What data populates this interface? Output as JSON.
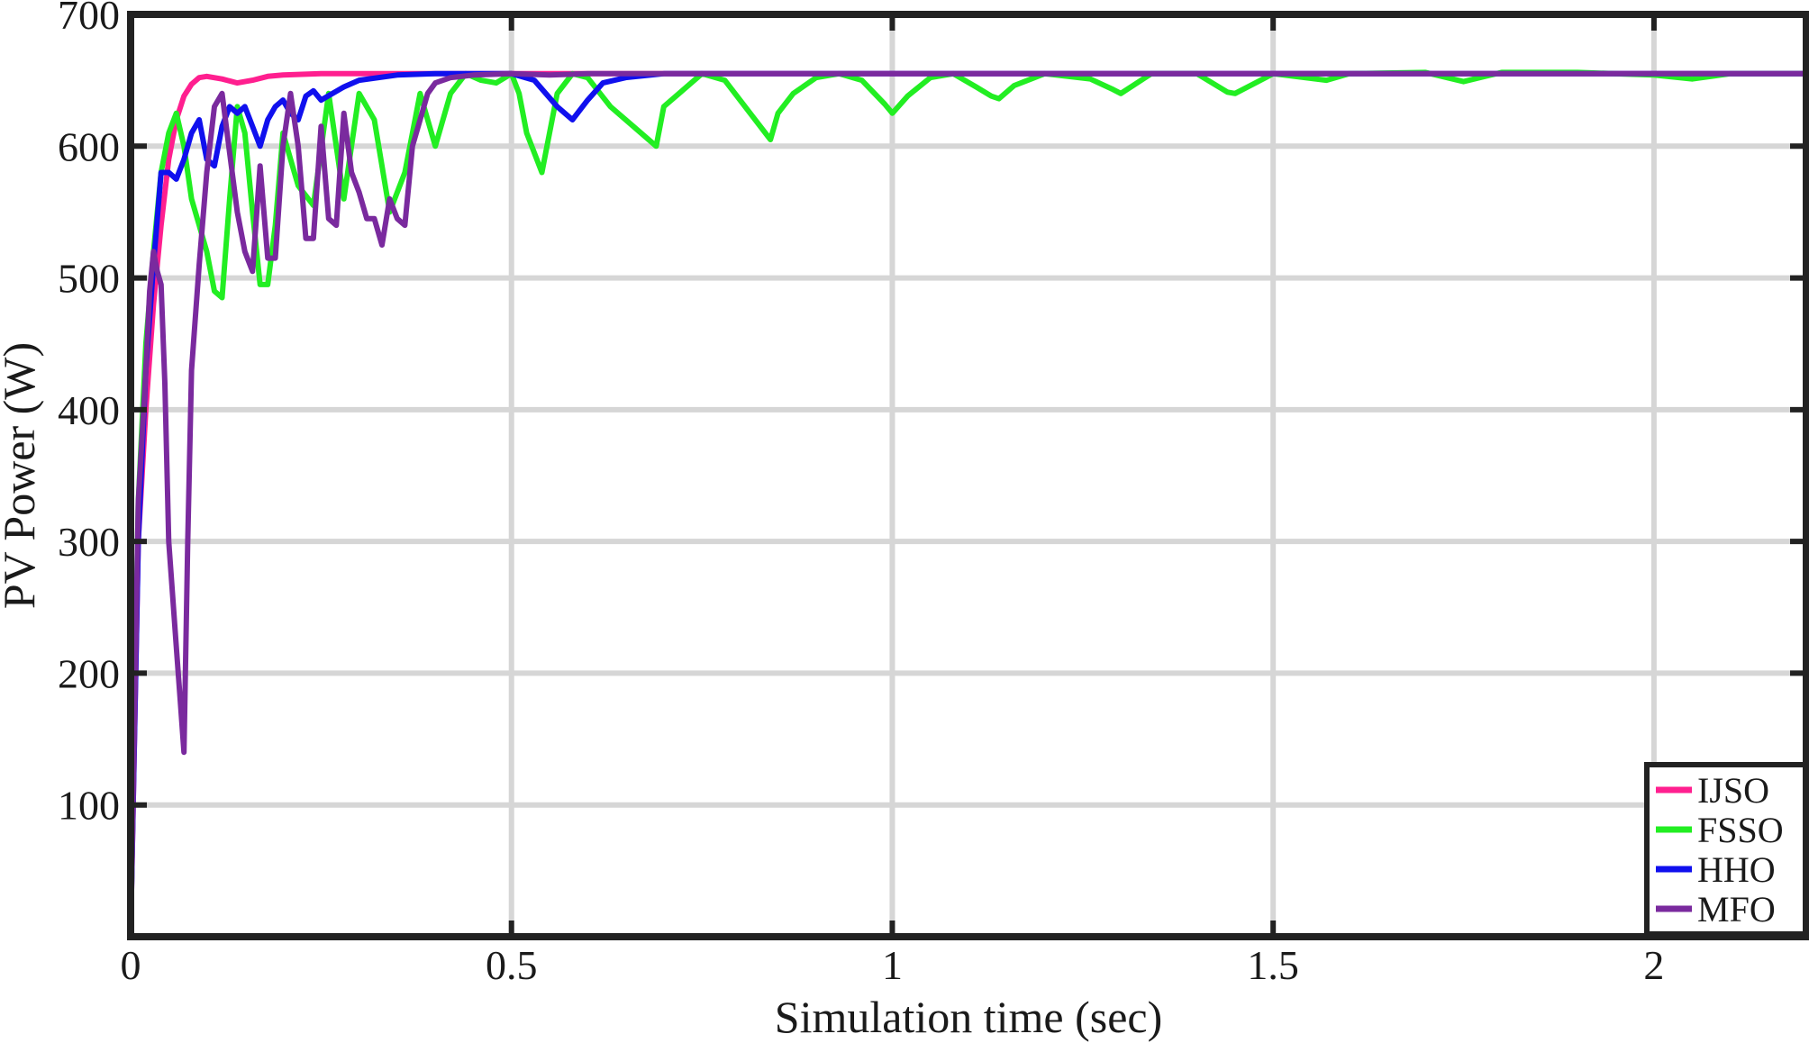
{
  "chart_data": {
    "type": "line",
    "title": "",
    "xlabel": "Simulation time (sec)",
    "ylabel": "PV Power (W)",
    "xlim": [
      0,
      2.2
    ],
    "ylim": [
      0,
      700
    ],
    "xticks": [
      0,
      0.5,
      1,
      1.5,
      2
    ],
    "xtick_labels": [
      "0",
      "0.5",
      "1",
      "1.5",
      "2"
    ],
    "yticks": [
      100,
      200,
      300,
      400,
      500,
      600,
      700
    ],
    "ytick_labels": [
      "100",
      "200",
      "300",
      "400",
      "500",
      "600",
      "700"
    ],
    "grid": true,
    "legend_position": "bottom-right",
    "series": [
      {
        "name": "IJSO",
        "color": "#ff1f8f",
        "x": [
          0,
          0.01,
          0.02,
          0.03,
          0.04,
          0.05,
          0.06,
          0.07,
          0.08,
          0.09,
          0.1,
          0.12,
          0.14,
          0.16,
          0.18,
          0.2,
          0.25,
          0.3,
          0.5,
          1,
          1.5,
          2,
          2.2
        ],
        "y": [
          0,
          300,
          400,
          480,
          540,
          590,
          620,
          638,
          647,
          652,
          653,
          651,
          648,
          650,
          653,
          654,
          655,
          655,
          655,
          655,
          655,
          655,
          655
        ]
      },
      {
        "name": "FSSO",
        "color": "#22ee22",
        "x": [
          0,
          0.01,
          0.02,
          0.03,
          0.04,
          0.05,
          0.06,
          0.07,
          0.08,
          0.09,
          0.1,
          0.11,
          0.12,
          0.13,
          0.14,
          0.15,
          0.16,
          0.17,
          0.18,
          0.19,
          0.2,
          0.22,
          0.24,
          0.26,
          0.28,
          0.3,
          0.32,
          0.34,
          0.36,
          0.38,
          0.4,
          0.42,
          0.44,
          0.46,
          0.48,
          0.5,
          0.51,
          0.52,
          0.54,
          0.56,
          0.58,
          0.6,
          0.63,
          0.66,
          0.69,
          0.7,
          0.72,
          0.75,
          0.78,
          0.84,
          0.85,
          0.87,
          0.9,
          0.93,
          0.96,
          0.99,
          1.0,
          1.02,
          1.05,
          1.08,
          1.11,
          1.13,
          1.14,
          1.16,
          1.2,
          1.26,
          1.29,
          1.3,
          1.34,
          1.4,
          1.44,
          1.45,
          1.5,
          1.57,
          1.6,
          1.7,
          1.75,
          1.8,
          1.9,
          2.0,
          2.05,
          2.1,
          2.2
        ],
        "y": [
          0,
          330,
          450,
          520,
          580,
          610,
          625,
          600,
          560,
          540,
          520,
          490,
          485,
          560,
          630,
          610,
          550,
          495,
          495,
          540,
          610,
          570,
          555,
          640,
          560,
          640,
          620,
          550,
          580,
          640,
          600,
          640,
          655,
          650,
          648,
          655,
          640,
          610,
          580,
          640,
          655,
          652,
          630,
          615,
          600,
          630,
          640,
          655,
          650,
          605,
          625,
          640,
          652,
          655,
          650,
          632,
          625,
          638,
          652,
          655,
          645,
          638,
          636,
          646,
          655,
          651,
          643,
          640,
          655,
          655,
          641,
          640,
          655,
          650,
          655,
          656,
          649,
          656,
          656,
          654,
          651,
          655,
          655
        ]
      },
      {
        "name": "HHO",
        "color": "#1010ee",
        "x": [
          0,
          0.01,
          0.02,
          0.03,
          0.04,
          0.05,
          0.06,
          0.07,
          0.08,
          0.09,
          0.1,
          0.11,
          0.12,
          0.13,
          0.14,
          0.15,
          0.16,
          0.17,
          0.18,
          0.19,
          0.2,
          0.21,
          0.22,
          0.23,
          0.24,
          0.25,
          0.28,
          0.3,
          0.35,
          0.4,
          0.45,
          0.5,
          0.53,
          0.56,
          0.58,
          0.6,
          0.62,
          0.65,
          0.7,
          0.8,
          1.0,
          1.5,
          2.0,
          2.2
        ],
        "y": [
          0,
          300,
          430,
          510,
          580,
          580,
          575,
          590,
          610,
          620,
          590,
          585,
          615,
          630,
          625,
          630,
          615,
          600,
          620,
          630,
          635,
          625,
          620,
          638,
          642,
          635,
          645,
          650,
          654,
          655,
          655,
          655,
          650,
          630,
          620,
          635,
          648,
          652,
          655,
          655,
          655,
          655,
          655,
          655
        ]
      },
      {
        "name": "MFO",
        "color": "#7a2a9e",
        "x": [
          0,
          0.01,
          0.02,
          0.025,
          0.03,
          0.035,
          0.04,
          0.045,
          0.05,
          0.06,
          0.065,
          0.07,
          0.075,
          0.08,
          0.09,
          0.1,
          0.11,
          0.12,
          0.13,
          0.14,
          0.15,
          0.16,
          0.17,
          0.18,
          0.19,
          0.2,
          0.21,
          0.22,
          0.23,
          0.24,
          0.25,
          0.26,
          0.27,
          0.28,
          0.29,
          0.3,
          0.31,
          0.32,
          0.33,
          0.34,
          0.35,
          0.36,
          0.37,
          0.38,
          0.39,
          0.4,
          0.42,
          0.45,
          0.5,
          0.55,
          0.6,
          0.7,
          1.0,
          1.5,
          2.0,
          2.2
        ],
        "y": [
          0,
          330,
          430,
          490,
          520,
          505,
          495,
          420,
          300,
          220,
          180,
          140,
          300,
          430,
          510,
          580,
          630,
          640,
          595,
          550,
          520,
          505,
          585,
          515,
          515,
          600,
          640,
          600,
          530,
          530,
          615,
          545,
          540,
          625,
          580,
          565,
          545,
          545,
          525,
          560,
          545,
          540,
          600,
          620,
          640,
          648,
          652,
          654,
          655,
          654,
          655,
          655,
          655,
          655,
          655,
          655
        ]
      }
    ]
  }
}
